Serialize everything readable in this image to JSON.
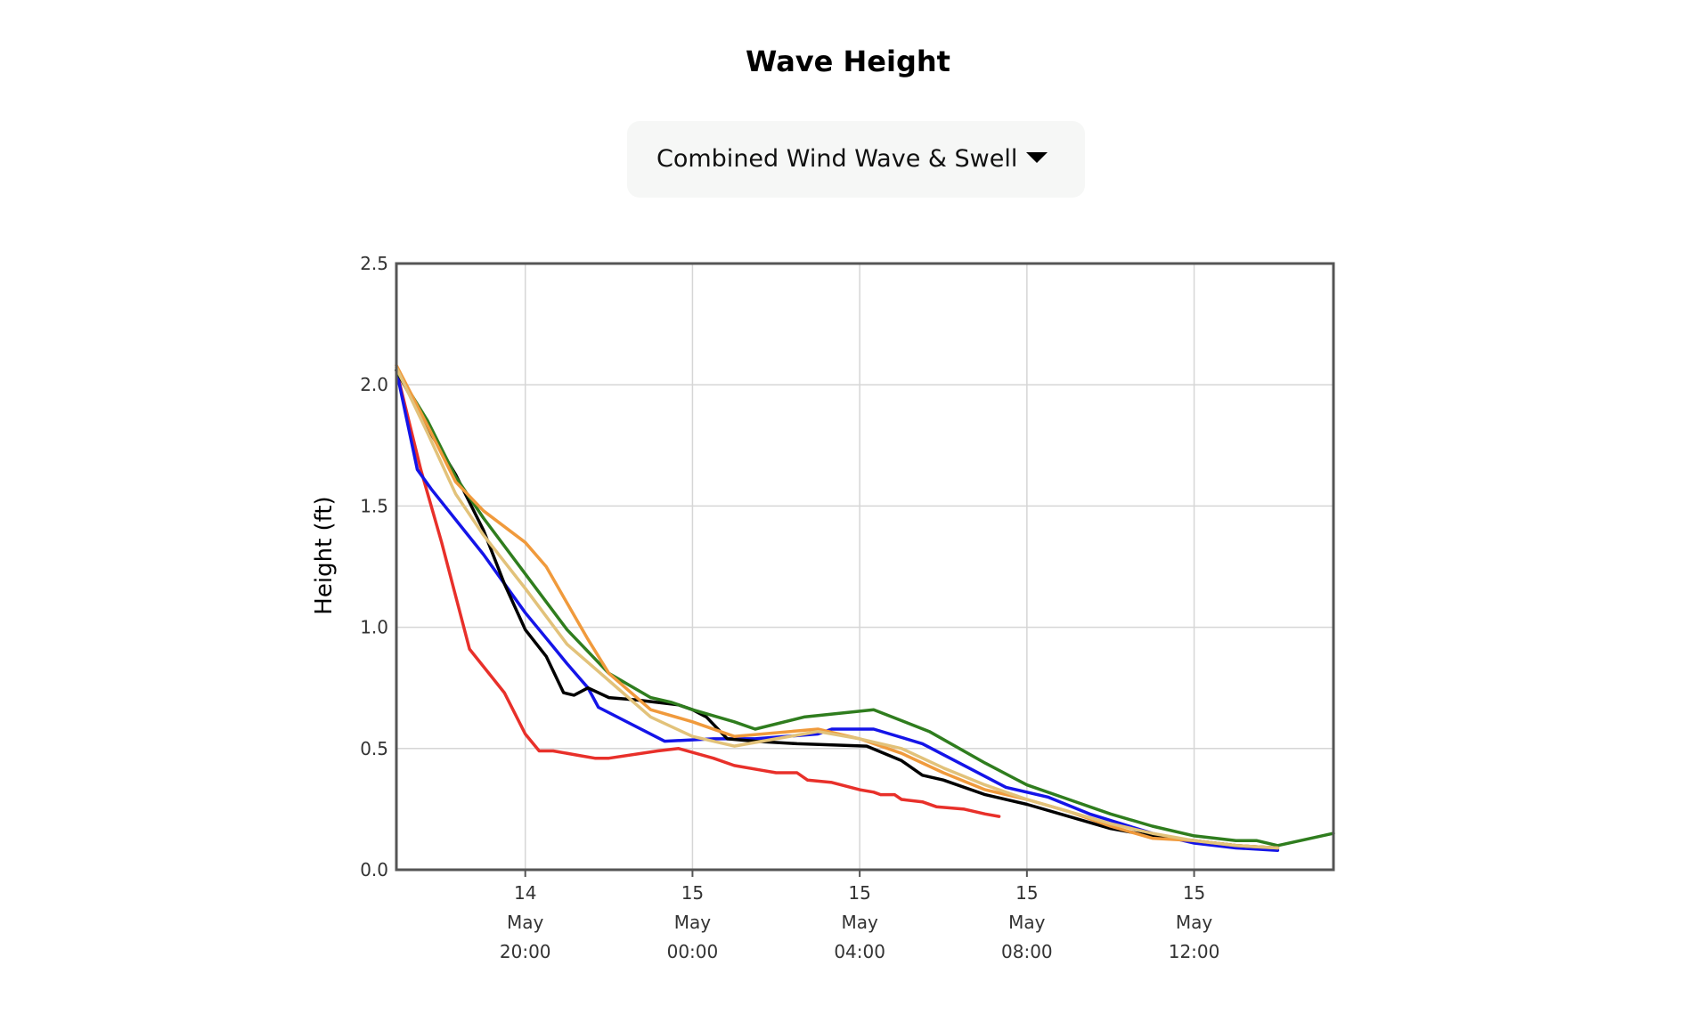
{
  "header": {
    "title": "Wave Height",
    "dropdown": {
      "selected": "Combined Wind Wave & Swell",
      "icon": "caret-down-icon"
    }
  },
  "chart_data": {
    "type": "line",
    "title": "Wave Height",
    "xlabel": "",
    "ylabel": "Height (ft)",
    "ylim": [
      0,
      2.5
    ],
    "xlim": [
      "2024-05-14T16:55",
      "2024-05-15T15:20"
    ],
    "y_ticks": [
      "0.0",
      "0.5",
      "1.0",
      "1.5",
      "2.0",
      "2.5"
    ],
    "x_ticks": [
      {
        "at": "2024-05-14T20:00",
        "lines": [
          "14",
          "May",
          "20:00"
        ]
      },
      {
        "at": "2024-05-15T00:00",
        "lines": [
          "15",
          "May",
          "00:00"
        ]
      },
      {
        "at": "2024-05-15T04:00",
        "lines": [
          "15",
          "May",
          "04:00"
        ]
      },
      {
        "at": "2024-05-15T08:00",
        "lines": [
          "15",
          "May",
          "08:00"
        ]
      },
      {
        "at": "2024-05-15T12:00",
        "lines": [
          "15",
          "May",
          "12:00"
        ]
      }
    ],
    "grid": true,
    "series": [
      {
        "color": "#e8302a",
        "points": [
          [
            "2024-05-14T16:55",
            2.06
          ],
          [
            "2024-05-14T17:30",
            1.65
          ],
          [
            "2024-05-14T18:00",
            1.35
          ],
          [
            "2024-05-14T18:40",
            0.91
          ],
          [
            "2024-05-14T19:30",
            0.73
          ],
          [
            "2024-05-14T20:00",
            0.56
          ],
          [
            "2024-05-14T20:20",
            0.49
          ],
          [
            "2024-05-14T20:40",
            0.49
          ],
          [
            "2024-05-14T21:20",
            0.47
          ],
          [
            "2024-05-14T21:40",
            0.46
          ],
          [
            "2024-05-14T22:00",
            0.46
          ],
          [
            "2024-05-14T23:10",
            0.49
          ],
          [
            "2024-05-14T23:40",
            0.5
          ],
          [
            "2024-05-15T00:30",
            0.46
          ],
          [
            "2024-05-15T01:00",
            0.43
          ],
          [
            "2024-05-15T01:40",
            0.41
          ],
          [
            "2024-05-15T02:00",
            0.4
          ],
          [
            "2024-05-15T02:30",
            0.4
          ],
          [
            "2024-05-15T02:45",
            0.37
          ],
          [
            "2024-05-15T03:20",
            0.36
          ],
          [
            "2024-05-15T04:00",
            0.33
          ],
          [
            "2024-05-15T04:20",
            0.32
          ],
          [
            "2024-05-15T04:30",
            0.31
          ],
          [
            "2024-05-15T04:50",
            0.31
          ],
          [
            "2024-05-15T05:00",
            0.29
          ],
          [
            "2024-05-15T05:30",
            0.28
          ],
          [
            "2024-05-15T05:50",
            0.26
          ],
          [
            "2024-05-15T06:30",
            0.25
          ],
          [
            "2024-05-15T07:00",
            0.23
          ],
          [
            "2024-05-15T07:20",
            0.22
          ]
        ]
      },
      {
        "color": "#1414e8",
        "points": [
          [
            "2024-05-14T16:55",
            2.06
          ],
          [
            "2024-05-14T17:25",
            1.65
          ],
          [
            "2024-05-14T17:45",
            1.57
          ],
          [
            "2024-05-14T19:00",
            1.3
          ],
          [
            "2024-05-14T20:00",
            1.06
          ],
          [
            "2024-05-14T20:40",
            0.92
          ],
          [
            "2024-05-14T21:00",
            0.85
          ],
          [
            "2024-05-14T21:30",
            0.75
          ],
          [
            "2024-05-14T21:45",
            0.67
          ],
          [
            "2024-05-14T23:20",
            0.53
          ],
          [
            "2024-05-15T00:30",
            0.54
          ],
          [
            "2024-05-15T01:30",
            0.54
          ],
          [
            "2024-05-15T03:00",
            0.56
          ],
          [
            "2024-05-15T03:20",
            0.58
          ],
          [
            "2024-05-15T04:20",
            0.58
          ],
          [
            "2024-05-15T05:30",
            0.52
          ],
          [
            "2024-05-15T06:30",
            0.43
          ],
          [
            "2024-05-15T07:30",
            0.34
          ],
          [
            "2024-05-15T08:30",
            0.3
          ],
          [
            "2024-05-15T09:30",
            0.23
          ],
          [
            "2024-05-15T11:00",
            0.15
          ],
          [
            "2024-05-15T12:00",
            0.11
          ],
          [
            "2024-05-15T13:00",
            0.09
          ],
          [
            "2024-05-15T14:00",
            0.08
          ]
        ]
      },
      {
        "color": "#000000",
        "points": [
          [
            "2024-05-14T16:55",
            2.06
          ],
          [
            "2024-05-14T17:40",
            1.82
          ],
          [
            "2024-05-14T18:20",
            1.63
          ],
          [
            "2024-05-14T19:00",
            1.4
          ],
          [
            "2024-05-14T19:30",
            1.18
          ],
          [
            "2024-05-14T20:00",
            0.99
          ],
          [
            "2024-05-14T20:30",
            0.88
          ],
          [
            "2024-05-14T20:55",
            0.73
          ],
          [
            "2024-05-14T21:10",
            0.72
          ],
          [
            "2024-05-14T21:30",
            0.75
          ],
          [
            "2024-05-14T22:00",
            0.71
          ],
          [
            "2024-05-14T22:40",
            0.7
          ],
          [
            "2024-05-14T23:40",
            0.68
          ],
          [
            "2024-05-15T00:00",
            0.66
          ],
          [
            "2024-05-15T00:20",
            0.63
          ],
          [
            "2024-05-15T00:50",
            0.54
          ],
          [
            "2024-05-15T01:30",
            0.53
          ],
          [
            "2024-05-15T02:30",
            0.52
          ],
          [
            "2024-05-15T04:10",
            0.51
          ],
          [
            "2024-05-15T05:00",
            0.45
          ],
          [
            "2024-05-15T05:30",
            0.39
          ],
          [
            "2024-05-15T06:00",
            0.37
          ],
          [
            "2024-05-15T07:00",
            0.31
          ],
          [
            "2024-05-15T08:00",
            0.27
          ],
          [
            "2024-05-15T09:00",
            0.22
          ],
          [
            "2024-05-15T10:00",
            0.17
          ],
          [
            "2024-05-15T11:00",
            0.14
          ],
          [
            "2024-05-15T12:00",
            0.12
          ],
          [
            "2024-05-15T13:00",
            0.1
          ],
          [
            "2024-05-15T14:00",
            0.09
          ]
        ]
      },
      {
        "color": "#2f7d1e",
        "points": [
          [
            "2024-05-14T16:55",
            2.06
          ],
          [
            "2024-05-14T17:40",
            1.85
          ],
          [
            "2024-05-14T18:20",
            1.62
          ],
          [
            "2024-05-14T19:00",
            1.45
          ],
          [
            "2024-05-14T20:00",
            1.22
          ],
          [
            "2024-05-14T21:00",
            0.99
          ],
          [
            "2024-05-14T22:00",
            0.81
          ],
          [
            "2024-05-14T23:00",
            0.71
          ],
          [
            "2024-05-14T23:30",
            0.69
          ],
          [
            "2024-05-15T00:00",
            0.66
          ],
          [
            "2024-05-15T01:00",
            0.61
          ],
          [
            "2024-05-15T01:30",
            0.58
          ],
          [
            "2024-05-15T02:40",
            0.63
          ],
          [
            "2024-05-15T04:20",
            0.66
          ],
          [
            "2024-05-15T05:40",
            0.57
          ],
          [
            "2024-05-15T07:00",
            0.44
          ],
          [
            "2024-05-15T08:00",
            0.35
          ],
          [
            "2024-05-15T09:00",
            0.29
          ],
          [
            "2024-05-15T10:00",
            0.23
          ],
          [
            "2024-05-15T11:00",
            0.18
          ],
          [
            "2024-05-15T12:00",
            0.14
          ],
          [
            "2024-05-15T13:00",
            0.12
          ],
          [
            "2024-05-15T13:30",
            0.12
          ],
          [
            "2024-05-15T14:00",
            0.1
          ],
          [
            "2024-05-15T15:20",
            0.15
          ]
        ]
      },
      {
        "color": "#f09a3c",
        "points": [
          [
            "2024-05-14T16:55",
            2.08
          ],
          [
            "2024-05-14T17:40",
            1.83
          ],
          [
            "2024-05-14T18:20",
            1.6
          ],
          [
            "2024-05-14T19:00",
            1.48
          ],
          [
            "2024-05-14T20:00",
            1.35
          ],
          [
            "2024-05-14T20:30",
            1.25
          ],
          [
            "2024-05-14T21:00",
            1.1
          ],
          [
            "2024-05-14T21:30",
            0.95
          ],
          [
            "2024-05-14T22:00",
            0.81
          ],
          [
            "2024-05-14T23:00",
            0.66
          ],
          [
            "2024-05-15T00:00",
            0.61
          ],
          [
            "2024-05-15T01:00",
            0.55
          ],
          [
            "2024-05-15T03:00",
            0.58
          ],
          [
            "2024-05-15T04:00",
            0.54
          ],
          [
            "2024-05-15T05:00",
            0.48
          ],
          [
            "2024-05-15T06:00",
            0.4
          ],
          [
            "2024-05-15T07:00",
            0.33
          ],
          [
            "2024-05-15T08:00",
            0.29
          ],
          [
            "2024-05-15T09:00",
            0.24
          ],
          [
            "2024-05-15T10:00",
            0.18
          ],
          [
            "2024-05-15T11:00",
            0.13
          ],
          [
            "2024-05-15T12:00",
            0.12
          ],
          [
            "2024-05-15T13:00",
            0.1
          ],
          [
            "2024-05-15T14:00",
            0.09
          ]
        ]
      },
      {
        "color": "#e2c27a",
        "points": [
          [
            "2024-05-14T16:55",
            2.07
          ],
          [
            "2024-05-14T17:40",
            1.8
          ],
          [
            "2024-05-14T18:20",
            1.55
          ],
          [
            "2024-05-14T19:00",
            1.38
          ],
          [
            "2024-05-14T20:00",
            1.16
          ],
          [
            "2024-05-14T21:00",
            0.93
          ],
          [
            "2024-05-14T22:00",
            0.78
          ],
          [
            "2024-05-14T23:00",
            0.63
          ],
          [
            "2024-05-15T00:00",
            0.55
          ],
          [
            "2024-05-15T01:00",
            0.51
          ],
          [
            "2024-05-15T02:00",
            0.54
          ],
          [
            "2024-05-15T03:00",
            0.57
          ],
          [
            "2024-05-15T04:00",
            0.54
          ],
          [
            "2024-05-15T05:00",
            0.5
          ],
          [
            "2024-05-15T06:00",
            0.42
          ],
          [
            "2024-05-15T07:00",
            0.35
          ],
          [
            "2024-05-15T08:00",
            0.29
          ],
          [
            "2024-05-15T09:00",
            0.24
          ],
          [
            "2024-05-15T10:00",
            0.19
          ],
          [
            "2024-05-15T11:00",
            0.15
          ],
          [
            "2024-05-15T12:00",
            0.12
          ],
          [
            "2024-05-15T13:00",
            0.1
          ],
          [
            "2024-05-15T14:00",
            0.09
          ]
        ]
      }
    ]
  }
}
